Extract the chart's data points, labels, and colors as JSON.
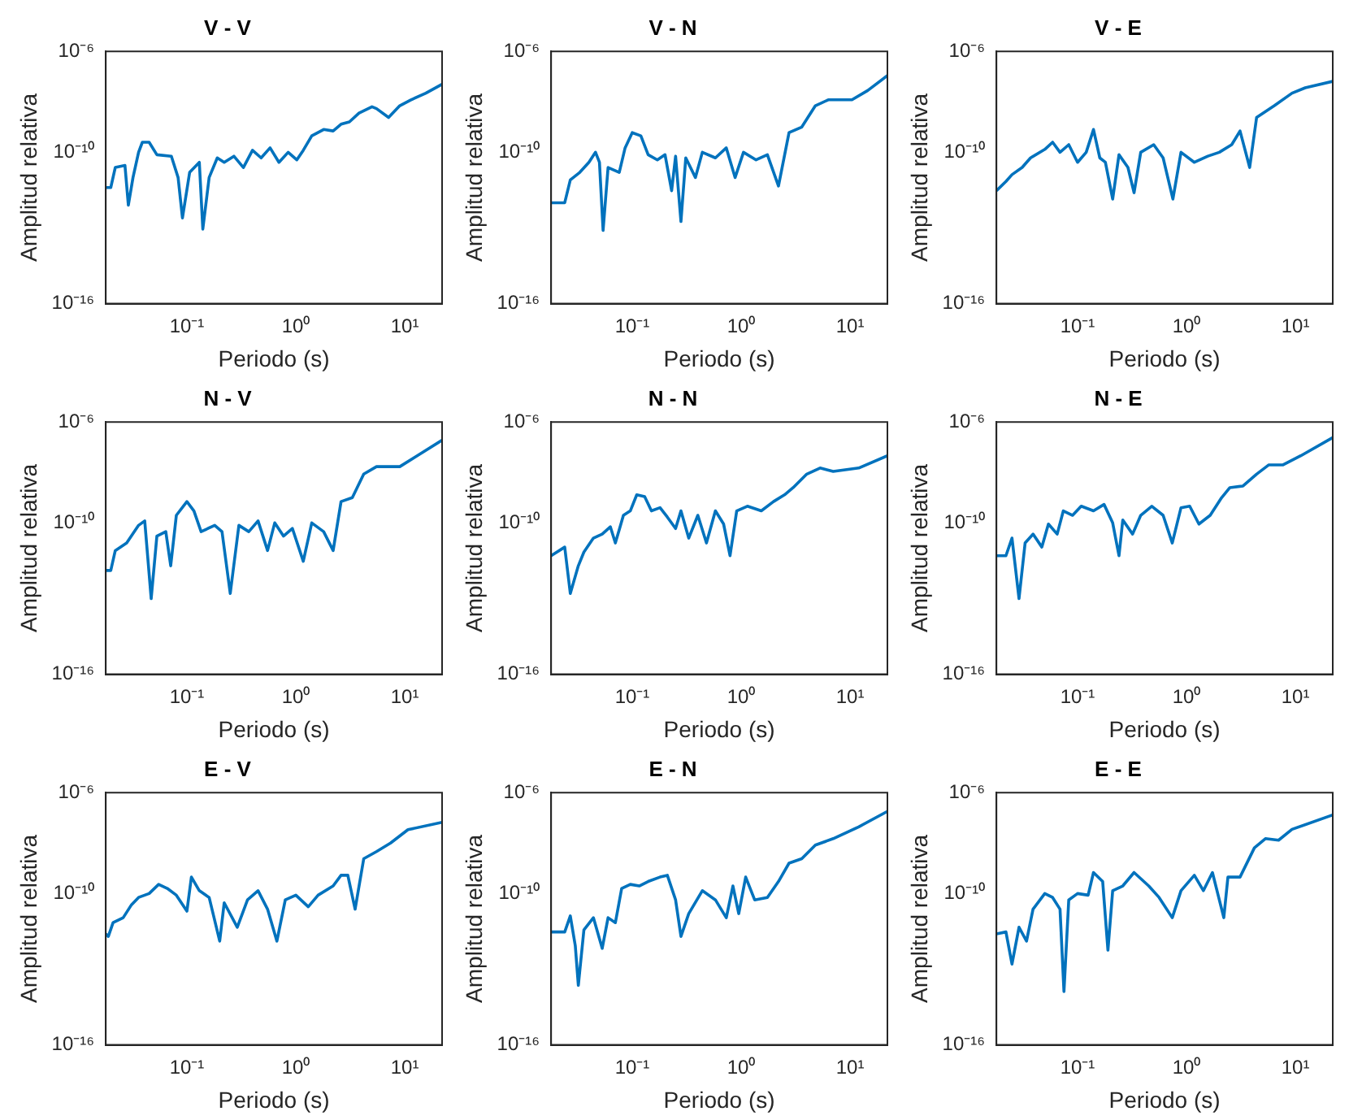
{
  "chart_data": [
    {
      "type": "line",
      "title": "V - V",
      "xlabel": "Periodo (s)",
      "ylabel": "Amplitud relativa",
      "log": "xy",
      "grid": false,
      "marker": "none",
      "xlim": [
        0.018,
        22
      ],
      "ylim": [
        1e-16,
        1e-06
      ],
      "xticks": [
        {
          "value": 0.1,
          "label": "10⁻¹"
        },
        {
          "value": 1,
          "label": "10⁰"
        },
        {
          "value": 10,
          "label": "10¹"
        }
      ],
      "yticks": [
        {
          "value": 1e-16,
          "label": "10⁻¹⁶"
        },
        {
          "value": 1e-10,
          "label": "10⁻¹⁰"
        },
        {
          "value": 1e-06,
          "label": "10⁻⁶"
        }
      ],
      "series": [
        {
          "color": "#0072bd",
          "x": [
            0.018,
            0.02,
            0.022,
            0.027,
            0.029,
            0.032,
            0.036,
            0.039,
            0.045,
            0.053,
            0.072,
            0.083,
            0.091,
            0.106,
            0.13,
            0.14,
            0.16,
            0.19,
            0.22,
            0.27,
            0.33,
            0.4,
            0.48,
            0.58,
            0.7,
            0.85,
            1.02,
            1.17,
            1.4,
            1.8,
            2.2,
            2.6,
            3.1,
            3.8,
            5,
            5.5,
            7.1,
            9,
            11.4,
            15.6,
            22
          ],
          "values": [
            4e-12,
            4e-12,
            2.5e-11,
            3e-11,
            8e-13,
            1e-11,
            1e-10,
            2.5e-10,
            2.5e-10,
            8e-11,
            7e-11,
            1e-11,
            2.5e-13,
            1.6e-11,
            4e-11,
            9e-14,
            1e-11,
            6e-11,
            4e-11,
            7e-11,
            2.5e-11,
            1.2e-10,
            6e-11,
            1.5e-10,
            4e-11,
            1e-10,
            5e-11,
            1.2e-10,
            4.5e-10,
            8e-10,
            7e-10,
            1.3e-09,
            1.6e-09,
            3.6e-09,
            6.4e-09,
            5.4e-09,
            2.4e-09,
            7e-09,
            1.2e-08,
            2.2e-08,
            5e-08
          ]
        }
      ]
    },
    {
      "type": "line",
      "title": "V - N",
      "xlabel": "Periodo (s)",
      "ylabel": "Amplitud relativa",
      "log": "xy",
      "grid": false,
      "marker": "none",
      "xlim": [
        0.018,
        22
      ],
      "ylim": [
        1e-16,
        1e-06
      ],
      "xticks": [
        {
          "value": 0.1,
          "label": "10⁻¹"
        },
        {
          "value": 1,
          "label": "10⁰"
        },
        {
          "value": 10,
          "label": "10¹"
        }
      ],
      "yticks": [
        {
          "value": 1e-16,
          "label": "10⁻¹⁶"
        },
        {
          "value": 1e-10,
          "label": "10⁻¹⁰"
        },
        {
          "value": 1e-06,
          "label": "10⁻⁶"
        }
      ],
      "series": [
        {
          "color": "#0072bd",
          "x": [
            0.018,
            0.024,
            0.027,
            0.033,
            0.04,
            0.046,
            0.05,
            0.054,
            0.06,
            0.076,
            0.086,
            0.1,
            0.12,
            0.14,
            0.17,
            0.2,
            0.23,
            0.25,
            0.28,
            0.31,
            0.38,
            0.44,
            0.58,
            0.73,
            0.88,
            1.05,
            1.37,
            1.74,
            2.2,
            2.75,
            3.6,
            4.8,
            6.3,
            10.4,
            14.5,
            22
          ],
          "values": [
            1e-12,
            1e-12,
            8e-12,
            1.6e-11,
            4e-11,
            1e-10,
            4e-11,
            8e-14,
            2.5e-11,
            1.6e-11,
            1.5e-10,
            6e-10,
            4.5e-10,
            8e-11,
            5e-11,
            8e-11,
            3e-12,
            7e-11,
            1.8e-13,
            6e-11,
            1e-11,
            1e-10,
            6e-11,
            1.5e-10,
            1e-11,
            1e-10,
            5e-11,
            8e-11,
            4.6e-12,
            6e-10,
            1e-09,
            7e-09,
            1.2e-08,
            1.2e-08,
            2.8e-08,
            1.1e-07
          ]
        }
      ]
    },
    {
      "type": "line",
      "title": "V - E",
      "xlabel": "Periodo (s)",
      "ylabel": "Amplitud relativa",
      "log": "xy",
      "grid": false,
      "marker": "none",
      "xlim": [
        0.018,
        22
      ],
      "ylim": [
        1e-16,
        1e-06
      ],
      "xticks": [
        {
          "value": 0.1,
          "label": "10⁻¹"
        },
        {
          "value": 1,
          "label": "10⁰"
        },
        {
          "value": 10,
          "label": "10¹"
        }
      ],
      "yticks": [
        {
          "value": 1e-16,
          "label": "10⁻¹⁶"
        },
        {
          "value": 1e-10,
          "label": "10⁻¹⁰"
        },
        {
          "value": 1e-06,
          "label": "10⁻⁶"
        }
      ],
      "series": [
        {
          "color": "#0072bd",
          "x": [
            0.018,
            0.022,
            0.025,
            0.031,
            0.037,
            0.05,
            0.059,
            0.069,
            0.083,
            0.1,
            0.12,
            0.14,
            0.16,
            0.18,
            0.21,
            0.24,
            0.29,
            0.33,
            0.38,
            0.5,
            0.61,
            0.75,
            0.89,
            1.18,
            1.57,
            2,
            2.6,
            3.1,
            3.8,
            4.4,
            6.4,
            9.3,
            12.3,
            22
          ],
          "values": [
            3e-12,
            7e-12,
            1.3e-11,
            2.5e-11,
            6e-11,
            1.3e-10,
            2.5e-10,
            1e-10,
            2e-10,
            4e-11,
            1e-10,
            8e-10,
            6e-11,
            4e-11,
            1.4e-12,
            8e-11,
            2.5e-11,
            2.5e-12,
            1e-10,
            2e-10,
            6e-11,
            1.4e-12,
            1e-10,
            4e-11,
            7e-11,
            1e-10,
            2e-10,
            7e-10,
            2.5e-11,
            2.4e-09,
            7e-09,
            2.2e-08,
            3.6e-08,
            6.5e-08
          ]
        }
      ]
    },
    {
      "type": "line",
      "title": "N - V",
      "xlabel": "Periodo (s)",
      "ylabel": "Amplitud relativa",
      "log": "xy",
      "grid": false,
      "marker": "none",
      "xlim": [
        0.018,
        22
      ],
      "ylim": [
        1e-16,
        1e-06
      ],
      "xticks": [
        {
          "value": 0.1,
          "label": "10⁻¹"
        },
        {
          "value": 1,
          "label": "10⁰"
        },
        {
          "value": 10,
          "label": "10¹"
        }
      ],
      "yticks": [
        {
          "value": 1e-16,
          "label": "10⁻¹⁶"
        },
        {
          "value": 1e-10,
          "label": "10⁻¹⁰"
        },
        {
          "value": 1e-06,
          "label": "10⁻⁶"
        }
      ],
      "series": [
        {
          "color": "#0072bd",
          "x": [
            0.018,
            0.02,
            0.022,
            0.028,
            0.036,
            0.041,
            0.047,
            0.053,
            0.064,
            0.071,
            0.08,
            0.1,
            0.116,
            0.135,
            0.18,
            0.21,
            0.25,
            0.3,
            0.37,
            0.45,
            0.55,
            0.64,
            0.77,
            0.93,
            1.17,
            1.4,
            1.8,
            2.2,
            2.6,
            3.3,
            4.2,
            5.5,
            9,
            13,
            22
          ],
          "values": [
            1.3e-12,
            1.3e-12,
            8e-12,
            1.6e-11,
            8e-11,
            1.2e-10,
            1e-13,
            3e-11,
            4.5e-11,
            2e-12,
            2e-10,
            7e-10,
            3e-10,
            4.5e-11,
            8e-11,
            4.5e-11,
            1.6e-13,
            8e-11,
            4.5e-11,
            1.2e-10,
            8e-12,
            1e-10,
            3e-11,
            6e-11,
            3e-12,
            1e-10,
            4.5e-11,
            8e-12,
            7e-10,
            1e-09,
            8.6e-09,
            1.7e-08,
            1.7e-08,
            4.6e-08,
            1.9e-07
          ]
        }
      ]
    },
    {
      "type": "line",
      "title": "N - N",
      "xlabel": "Periodo (s)",
      "ylabel": "Amplitud relativa",
      "log": "xy",
      "grid": false,
      "marker": "none",
      "xlim": [
        0.018,
        22
      ],
      "ylim": [
        1e-16,
        1e-06
      ],
      "xticks": [
        {
          "value": 0.1,
          "label": "10⁻¹"
        },
        {
          "value": 1,
          "label": "10⁰"
        },
        {
          "value": 10,
          "label": "10¹"
        }
      ],
      "yticks": [
        {
          "value": 1e-16,
          "label": "10⁻¹⁶"
        },
        {
          "value": 1e-10,
          "label": "10⁻¹⁰"
        },
        {
          "value": 1e-06,
          "label": "10⁻⁶"
        }
      ],
      "series": [
        {
          "color": "#0072bd",
          "x": [
            0.018,
            0.024,
            0.027,
            0.032,
            0.036,
            0.044,
            0.053,
            0.063,
            0.07,
            0.083,
            0.096,
            0.11,
            0.13,
            0.15,
            0.18,
            0.21,
            0.25,
            0.28,
            0.33,
            0.4,
            0.48,
            0.58,
            0.69,
            0.79,
            0.91,
            1.14,
            1.53,
            1.98,
            2.5,
            3,
            4,
            5.3,
            7,
            12,
            22
          ],
          "values": [
            5e-12,
            1.1e-11,
            1.6e-13,
            2e-12,
            7e-12,
            2.5e-11,
            3.6e-11,
            7e-11,
            1.6e-11,
            2e-10,
            3e-10,
            1.3e-09,
            1.1e-09,
            3e-10,
            4e-10,
            1.7e-10,
            6e-11,
            3e-10,
            2.5e-11,
            2e-10,
            1.6e-11,
            3e-10,
            9e-11,
            5e-12,
            3e-10,
            4.6e-10,
            3e-10,
            7e-10,
            1.3e-09,
            2.5e-09,
            8.6e-09,
            1.5e-08,
            1.1e-08,
            1.5e-08,
            4.6e-08
          ]
        }
      ]
    },
    {
      "type": "line",
      "title": "N - E",
      "xlabel": "Periodo (s)",
      "ylabel": "Amplitud relativa",
      "log": "xy",
      "grid": false,
      "marker": "none",
      "xlim": [
        0.018,
        22
      ],
      "ylim": [
        1e-16,
        1e-06
      ],
      "xticks": [
        {
          "value": 0.1,
          "label": "10⁻¹"
        },
        {
          "value": 1,
          "label": "10⁰"
        },
        {
          "value": 10,
          "label": "10¹"
        }
      ],
      "yticks": [
        {
          "value": 1e-16,
          "label": "10⁻¹⁶"
        },
        {
          "value": 1e-10,
          "label": "10⁻¹⁰"
        },
        {
          "value": 1e-06,
          "label": "10⁻⁶"
        }
      ],
      "series": [
        {
          "color": "#0072bd",
          "x": [
            0.018,
            0.022,
            0.025,
            0.029,
            0.033,
            0.039,
            0.047,
            0.054,
            0.065,
            0.074,
            0.09,
            0.108,
            0.14,
            0.175,
            0.21,
            0.24,
            0.26,
            0.32,
            0.38,
            0.48,
            0.61,
            0.74,
            0.89,
            1.07,
            1.3,
            1.65,
            2.1,
            2.5,
            3.3,
            4.4,
            5.7,
            7.7,
            11.2,
            22
          ],
          "values": [
            5e-12,
            5e-12,
            2.5e-11,
            1e-13,
            1.6e-11,
            3.6e-11,
            1.1e-11,
            9e-11,
            3.6e-11,
            3e-10,
            2e-10,
            4.6e-10,
            3e-10,
            5.4e-10,
            1e-10,
            5e-12,
            1.3e-10,
            3.6e-11,
            2e-10,
            4.6e-10,
            2e-10,
            1.6e-11,
            4e-10,
            4.6e-10,
            9e-11,
            2e-10,
            1e-09,
            2.5e-09,
            2.9e-09,
            8.6e-09,
            2e-08,
            2e-08,
            4.6e-08,
            2.4e-07
          ]
        }
      ]
    },
    {
      "type": "line",
      "title": "E - V",
      "xlabel": "Periodo (s)",
      "ylabel": "Amplitud relativa",
      "log": "xy",
      "grid": false,
      "marker": "none",
      "xlim": [
        0.018,
        22
      ],
      "ylim": [
        1e-16,
        1e-06
      ],
      "xticks": [
        {
          "value": 0.1,
          "label": "10⁻¹"
        },
        {
          "value": 1,
          "label": "10⁰"
        },
        {
          "value": 10,
          "label": "10¹"
        }
      ],
      "yticks": [
        {
          "value": 1e-16,
          "label": "10⁻¹⁶"
        },
        {
          "value": 1e-10,
          "label": "10⁻¹⁰"
        },
        {
          "value": 1e-06,
          "label": "10⁻⁶"
        }
      ],
      "series": [
        {
          "color": "#0072bd",
          "x": [
            0.018,
            0.019,
            0.021,
            0.026,
            0.031,
            0.036,
            0.045,
            0.055,
            0.066,
            0.08,
            0.1,
            0.11,
            0.13,
            0.16,
            0.2,
            0.22,
            0.29,
            0.36,
            0.45,
            0.55,
            0.67,
            0.8,
            1,
            1.3,
            1.6,
            2.2,
            2.6,
            3,
            3.5,
            4.2,
            5.5,
            7.4,
            10.7,
            22
          ],
          "values": [
            2.5e-12,
            2e-12,
            7e-12,
            1.1e-11,
            3.6e-11,
            7e-11,
            1e-10,
            2.3e-10,
            1.6e-10,
            8.6e-11,
            2e-11,
            4.5e-10,
            1.3e-10,
            7e-11,
            1.3e-12,
            4.3e-11,
            4.6e-12,
            5.6e-11,
            1.3e-10,
            2.4e-11,
            1.3e-12,
            5.6e-11,
            8.6e-11,
            3e-11,
            8.6e-11,
            2e-10,
            5.3e-10,
            5.3e-10,
            2.4e-11,
            2.4e-09,
            4.6e-09,
            1e-08,
            3.4e-08,
            6.7e-08
          ]
        }
      ]
    },
    {
      "type": "line",
      "title": "E - N",
      "xlabel": "Periodo (s)",
      "ylabel": "Amplitud relativa",
      "log": "xy",
      "grid": false,
      "marker": "none",
      "xlim": [
        0.018,
        22
      ],
      "ylim": [
        1e-16,
        1e-06
      ],
      "xticks": [
        {
          "value": 0.1,
          "label": "10⁻¹"
        },
        {
          "value": 1,
          "label": "10⁰"
        },
        {
          "value": 10,
          "label": "10¹"
        }
      ],
      "yticks": [
        {
          "value": 1e-16,
          "label": "10⁻¹⁶"
        },
        {
          "value": 1e-10,
          "label": "10⁻¹⁰"
        },
        {
          "value": 1e-06,
          "label": "10⁻⁶"
        }
      ],
      "series": [
        {
          "color": "#0072bd",
          "x": [
            0.018,
            0.024,
            0.027,
            0.03,
            0.032,
            0.036,
            0.044,
            0.053,
            0.06,
            0.07,
            0.08,
            0.096,
            0.116,
            0.14,
            0.18,
            0.21,
            0.25,
            0.28,
            0.33,
            0.44,
            0.58,
            0.73,
            0.84,
            0.95,
            1.1,
            1.33,
            1.74,
            2.2,
            2.75,
            3.6,
            4.8,
            7,
            12,
            22
          ],
          "values": [
            3e-12,
            3e-12,
            1.3e-11,
            8.6e-13,
            2.3e-14,
            3.6e-12,
            1.1e-11,
            6.7e-13,
            1.1e-11,
            7e-12,
            1.6e-10,
            2.3e-10,
            2e-10,
            3e-10,
            4.5e-10,
            5.3e-10,
            5.6e-11,
            2e-12,
            1.6e-11,
            1.3e-10,
            5.6e-11,
            1.1e-11,
            2e-10,
            1.6e-11,
            4.5e-10,
            5.6e-11,
            7e-11,
            3e-10,
            1.6e-09,
            2.4e-09,
            8.3e-09,
            1.5e-08,
            4.4e-08,
            1.8e-07
          ]
        }
      ]
    },
    {
      "type": "line",
      "title": "E - E",
      "xlabel": "Periodo (s)",
      "ylabel": "Amplitud relativa",
      "log": "xy",
      "grid": false,
      "marker": "none",
      "xlim": [
        0.018,
        22
      ],
      "ylim": [
        1e-16,
        1e-06
      ],
      "xticks": [
        {
          "value": 0.1,
          "label": "10⁻¹"
        },
        {
          "value": 1,
          "label": "10⁰"
        },
        {
          "value": 10,
          "label": "10¹"
        }
      ],
      "yticks": [
        {
          "value": 1e-16,
          "label": "10⁻¹⁶"
        },
        {
          "value": 1e-10,
          "label": "10⁻¹⁰"
        },
        {
          "value": 1e-06,
          "label": "10⁻⁶"
        }
      ],
      "series": [
        {
          "color": "#0072bd",
          "x": [
            0.018,
            0.022,
            0.025,
            0.029,
            0.034,
            0.039,
            0.05,
            0.059,
            0.069,
            0.075,
            0.083,
            0.1,
            0.125,
            0.14,
            0.17,
            0.19,
            0.21,
            0.26,
            0.33,
            0.45,
            0.56,
            0.74,
            0.89,
            1.18,
            1.43,
            1.73,
            2.2,
            2.4,
            3.1,
            4.2,
            5.3,
            7,
            9.3,
            22
          ],
          "values": [
            2.5e-12,
            3e-12,
            1.6e-13,
            4.6e-12,
            1.3e-12,
            2.4e-11,
            1e-10,
            7e-11,
            2.4e-11,
            1.3e-14,
            5.6e-11,
            1e-10,
            8.6e-11,
            6.8e-10,
            3e-10,
            5.7e-13,
            1.3e-10,
            2e-10,
            6.8e-10,
            2e-10,
            7e-11,
            1.1e-11,
            1.3e-10,
            5.3e-10,
            1.3e-10,
            6.8e-10,
            1.1e-11,
            4.5e-10,
            4.5e-10,
            6.5e-09,
            1.5e-08,
            1.3e-08,
            3.5e-08,
            1.3e-07
          ]
        }
      ]
    }
  ]
}
